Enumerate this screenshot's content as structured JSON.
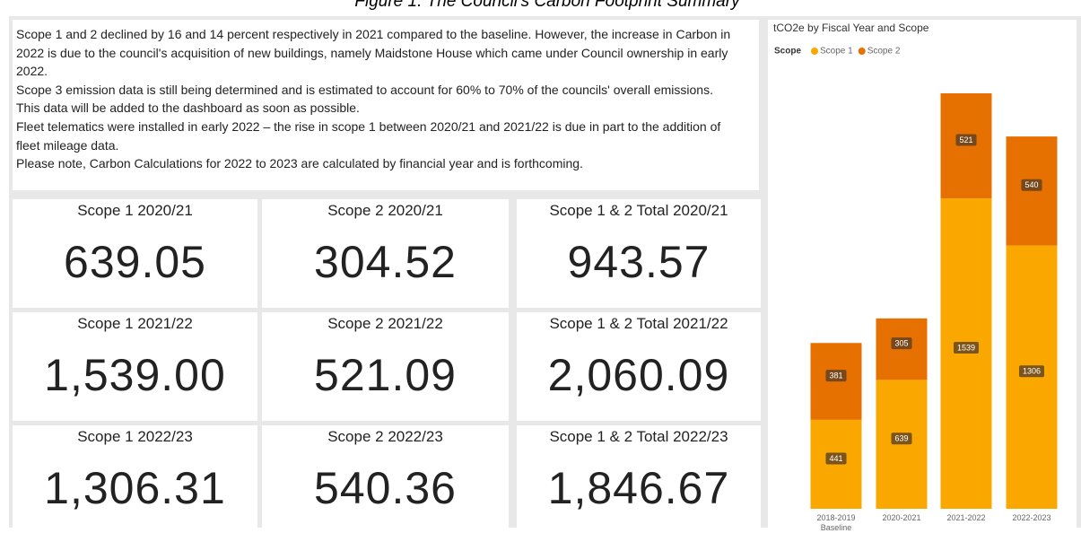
{
  "figure_title": "Figure 1: The Council's Carbon Footprint Summary",
  "notes": [
    "Scope 1 and 2 declined by 16 and 14 percent respectively in 2021 compared to the baseline. However, the increase in Carbon in 2022 is due to the council's acquisition of new buildings, namely Maidstone House which came under Council ownership in early 2022.",
    "Scope 3 emission data is still being determined and is estimated to account for 60% to 70% of the councils' overall emissions. This data will be added to the dashboard as soon as possible.",
    "Fleet telematics were installed in early 2022 – the rise in scope 1 between 2020/21 and 2021/22 is due in part to the addition of fleet mileage data.",
    "Please note, Carbon Calculations for 2022 to 2023 are calculated by financial year and is forthcoming."
  ],
  "cards": [
    {
      "label": "Scope 1 2020/21",
      "value": "639.05"
    },
    {
      "label": "Scope 2 2020/21",
      "value": "304.52"
    },
    {
      "label": "Scope 1 & 2 Total 2020/21",
      "value": "943.57"
    },
    {
      "label": "Scope 1 2021/22",
      "value": "1,539.00"
    },
    {
      "label": "Scope 2 2021/22",
      "value": "521.09"
    },
    {
      "label": "Scope 1 & 2 Total 2021/22",
      "value": "2,060.09"
    },
    {
      "label": "Scope 1 2022/23",
      "value": "1,306.31"
    },
    {
      "label": "Scope 2 2022/23",
      "value": "540.36"
    },
    {
      "label": "Scope 1 & 2 Total 2022/23",
      "value": "1,846.67"
    }
  ],
  "chart_data": {
    "type": "stacked_bar",
    "title": "tCO2e by Fiscal Year and Scope",
    "legend_title": "Scope",
    "categories": [
      "2018-2019 Baseline",
      "2020-2021",
      "2021-2022",
      "2022-2023"
    ],
    "series": [
      {
        "name": "Scope 1",
        "color": "#FAA800",
        "values": [
          441,
          639,
          1539,
          1306
        ]
      },
      {
        "name": "Scope 2",
        "color": "#E67000",
        "values": [
          381,
          305,
          521,
          540
        ]
      }
    ]
  }
}
